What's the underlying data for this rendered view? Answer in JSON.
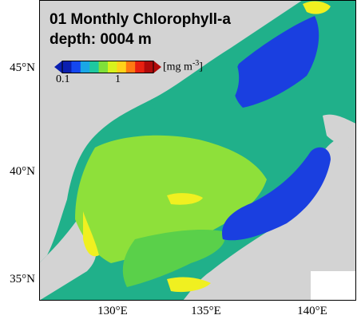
{
  "title": {
    "line1": "01 Monthly Chlorophyll-a",
    "line2": "depth: 0004 m"
  },
  "colorbar": {
    "unit_text": "[mg m",
    "unit_exponent": "-3",
    "unit_close": "]",
    "ticks": [
      "0.1",
      "1"
    ],
    "scale": "log",
    "colors": [
      "#0a1fb0",
      "#1447f0",
      "#1aa7e6",
      "#1ec8a0",
      "#7fe03a",
      "#d8f21c",
      "#ffd21a",
      "#ff7a12",
      "#e82010",
      "#b00a0a"
    ]
  },
  "axes": {
    "lat_labels": [
      "45°N",
      "40°N",
      "35°N"
    ],
    "lon_labels": [
      "130°E",
      "135°E",
      "140°E"
    ]
  },
  "colors": {
    "land": "#d3d3d3",
    "deep_blue": "#1a3fe0",
    "teal": "#20b08a",
    "green": "#5ad04a",
    "yellow_green": "#a8e030",
    "yellow": "#f0f020"
  }
}
